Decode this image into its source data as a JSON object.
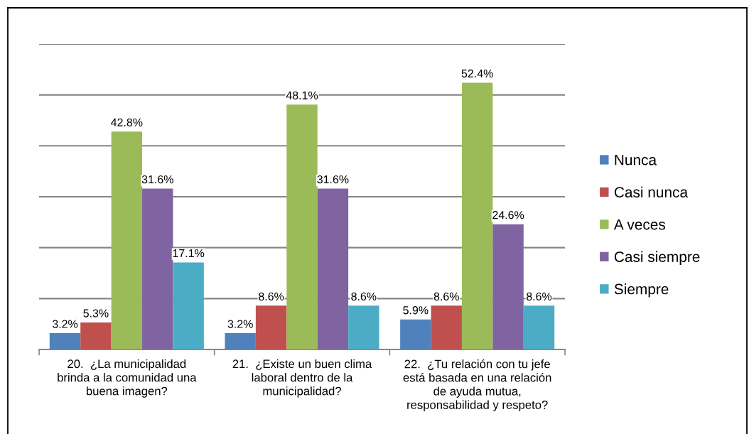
{
  "chart_data": {
    "type": "bar",
    "categories": [
      "20.  ¿La municipalidad\nbrinda a la comunidad una\nbuena imagen?",
      "21.  ¿Existe un buen clima\nlaboral dentro de la\nmunicipalidad?",
      "22.  ¿Tu relación con tu jefe\nestá basada en una relación\nde ayuda mutua,\nresponsabilidad y respeto?"
    ],
    "series": [
      {
        "name": "Nunca",
        "color": "#4f81bd",
        "values": [
          3.2,
          3.2,
          5.9
        ],
        "value_labels": [
          "3.2%",
          "3.2%",
          "5.9%"
        ]
      },
      {
        "name": "Casi nunca",
        "color": "#c0504d",
        "values": [
          5.3,
          8.6,
          8.6
        ],
        "value_labels": [
          "5.3%",
          "8.6%",
          "8.6%"
        ]
      },
      {
        "name": "A veces",
        "color": "#9bbb59",
        "values": [
          42.8,
          48.1,
          52.4
        ],
        "value_labels": [
          "42.8%",
          "48.1%",
          "52.4%"
        ]
      },
      {
        "name": "Casi siempre",
        "color": "#8064a2",
        "values": [
          31.6,
          31.6,
          24.6
        ],
        "value_labels": [
          "31.6%",
          "31.6%",
          "24.6%"
        ]
      },
      {
        "name": "Siempre",
        "color": "#4bacc6",
        "values": [
          17.1,
          8.6,
          8.6
        ],
        "value_labels": [
          "17.1%",
          "8.6%",
          "8.6%"
        ]
      }
    ],
    "ylim": [
      0,
      60
    ],
    "yticks": [
      {
        "value": 0,
        "label": null
      },
      {
        "value": 10,
        "label": null
      },
      {
        "value": 20,
        "label": null
      },
      {
        "value": 30,
        "label": null
      },
      {
        "value": 40,
        "label": null
      },
      {
        "value": 50,
        "label": null
      },
      {
        "value": 60,
        "label": null
      }
    ],
    "grid": "y",
    "legend": "right",
    "tick_labels": "x"
  }
}
